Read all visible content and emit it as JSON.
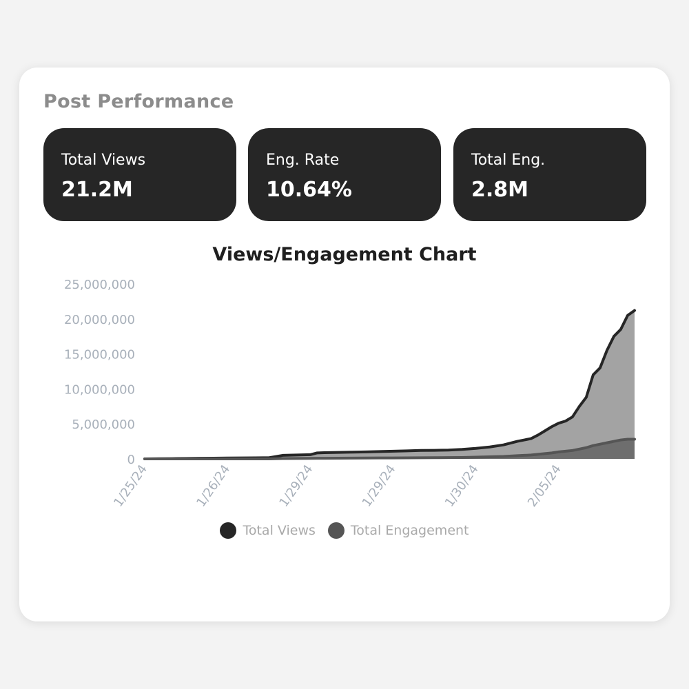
{
  "section_title": "Post Performance",
  "stats": [
    {
      "label": "Total Views",
      "value": "21.2M"
    },
    {
      "label": "Eng. Rate",
      "value": "10.64%"
    },
    {
      "label": "Total Eng.",
      "value": "2.8M"
    }
  ],
  "chart_data": {
    "type": "area",
    "title": "Views/Engagement Chart",
    "xlabel": "",
    "ylabel": "",
    "ylim": [
      0,
      25000000
    ],
    "yticks": [
      0,
      5000000,
      10000000,
      15000000,
      20000000,
      25000000
    ],
    "ytick_labels": [
      "0",
      "5,000,000",
      "10,000,000",
      "15,000,000",
      "20,000,000",
      "25,000,000"
    ],
    "xticks": [
      0,
      12,
      24,
      36,
      48,
      60
    ],
    "xtick_labels": [
      "1/25/24",
      "1/26/24",
      "1/29/24",
      "1/29/24",
      "1/30/24",
      "2/05/24"
    ],
    "x": [
      0,
      2,
      4,
      6,
      8,
      10,
      12,
      14,
      16,
      18,
      20,
      22,
      24,
      25,
      26,
      28,
      30,
      32,
      34,
      36,
      38,
      40,
      42,
      44,
      46,
      48,
      50,
      52,
      54,
      56,
      57,
      58,
      59,
      60,
      61,
      62,
      63,
      64,
      65,
      66,
      67,
      68,
      69,
      70,
      71
    ],
    "series": [
      {
        "name": "Total Views",
        "color": "#262626",
        "fill": "#a3a3a3",
        "values": [
          0,
          20000,
          40000,
          60000,
          80000,
          100000,
          120000,
          140000,
          150000,
          160000,
          500000,
          550000,
          600000,
          850000,
          880000,
          920000,
          960000,
          1000000,
          1050000,
          1100000,
          1150000,
          1200000,
          1220000,
          1250000,
          1350000,
          1500000,
          1700000,
          2000000,
          2500000,
          2900000,
          3400000,
          4000000,
          4600000,
          5100000,
          5400000,
          6000000,
          7500000,
          8800000,
          12000000,
          13000000,
          15500000,
          17500000,
          18500000,
          20500000,
          21200000
        ]
      },
      {
        "name": "Total Engagement",
        "color": "#555555",
        "fill": "#6e6e6e",
        "values": [
          0,
          0,
          0,
          0,
          0,
          0,
          0,
          0,
          0,
          0,
          50000,
          60000,
          70000,
          80000,
          90000,
          100000,
          110000,
          120000,
          130000,
          140000,
          150000,
          160000,
          170000,
          180000,
          200000,
          250000,
          300000,
          350000,
          450000,
          550000,
          650000,
          750000,
          850000,
          1000000,
          1100000,
          1200000,
          1400000,
          1600000,
          1900000,
          2100000,
          2300000,
          2500000,
          2700000,
          2800000,
          2800000
        ]
      }
    ],
    "grid": false,
    "legend_position": "bottom"
  }
}
